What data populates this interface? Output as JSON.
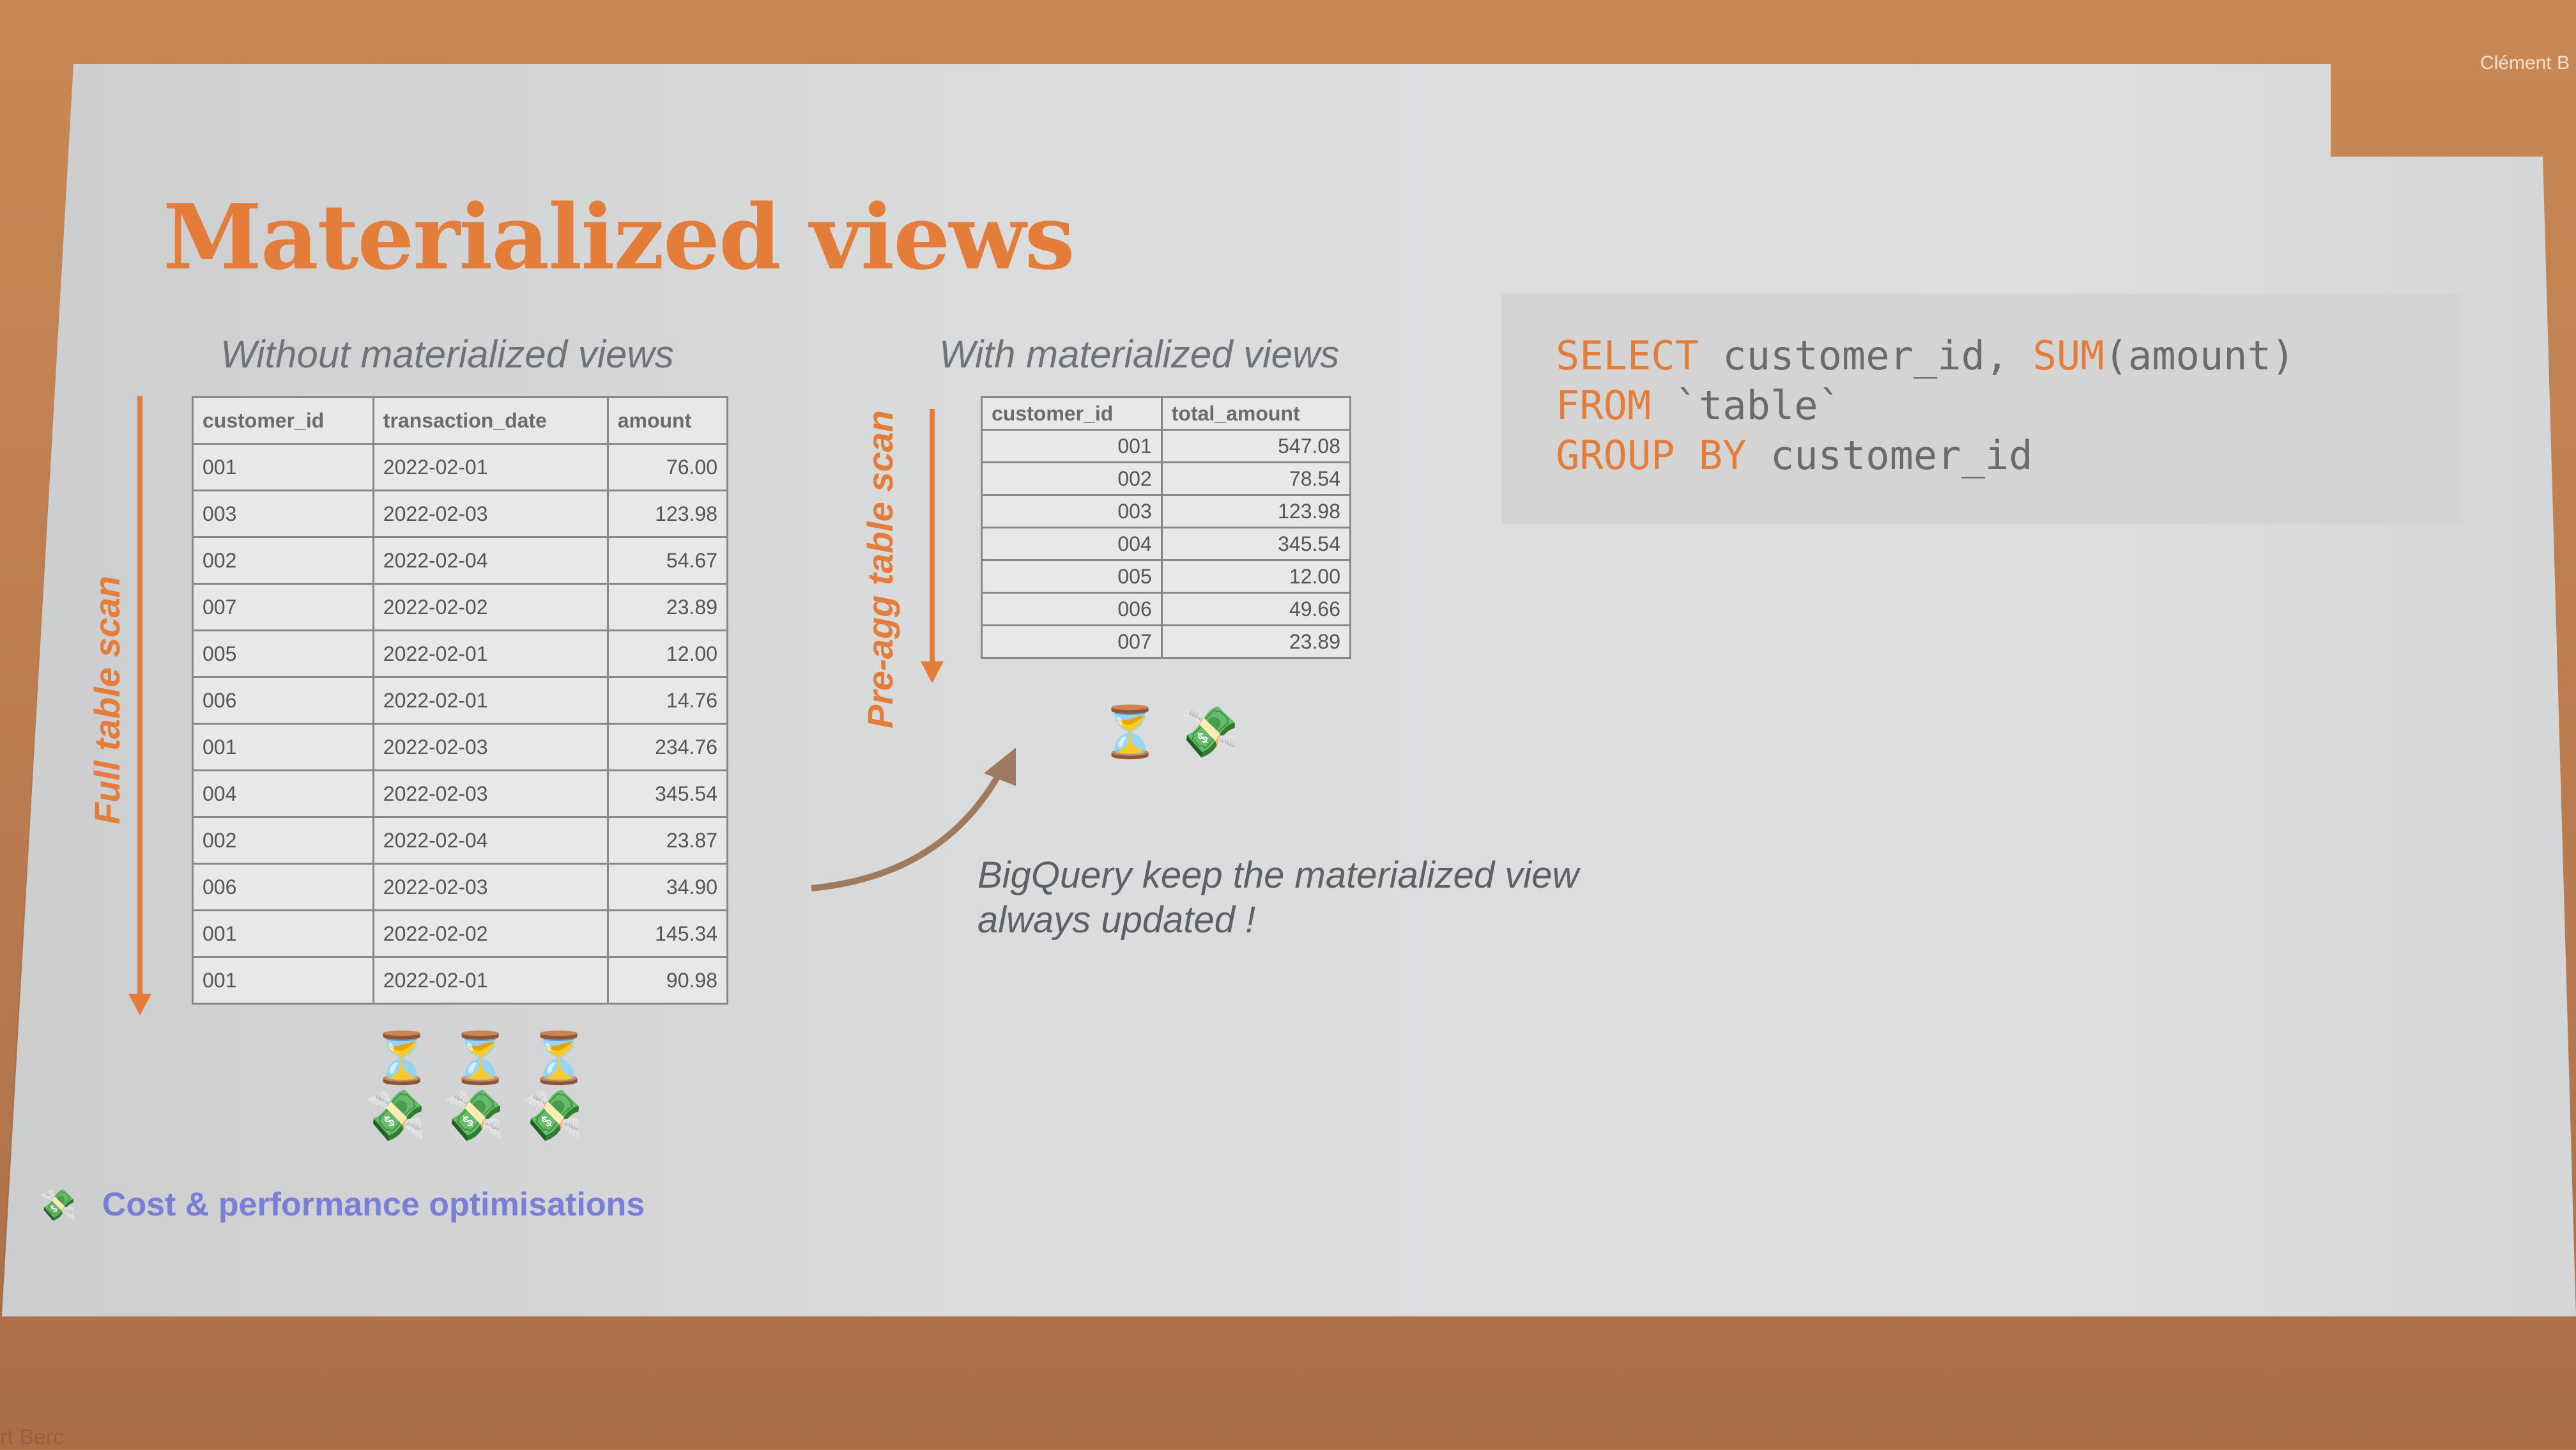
{
  "presenter": "Clément B",
  "bottom_text": "rt Berc",
  "slide": {
    "title": "Materialized views",
    "left_label": "Without materialized views",
    "right_label": "With materialized views",
    "full_scan_label": "Full table scan",
    "preagg_label": "Pre-agg table scan",
    "note": "BigQuery keep the materialized view always updated !",
    "footer": "Cost & performance optimisations"
  },
  "raw_table": {
    "headers": [
      "customer_id",
      "transaction_date",
      "amount"
    ],
    "rows": [
      [
        "001",
        "2022-02-01",
        "76.00"
      ],
      [
        "003",
        "2022-02-03",
        "123.98"
      ],
      [
        "002",
        "2022-02-04",
        "54.67"
      ],
      [
        "007",
        "2022-02-02",
        "23.89"
      ],
      [
        "005",
        "2022-02-01",
        "12.00"
      ],
      [
        "006",
        "2022-02-01",
        "14.76"
      ],
      [
        "001",
        "2022-02-03",
        "234.76"
      ],
      [
        "004",
        "2022-02-03",
        "345.54"
      ],
      [
        "002",
        "2022-02-04",
        "23.87"
      ],
      [
        "006",
        "2022-02-03",
        "34.90"
      ],
      [
        "001",
        "2022-02-02",
        "145.34"
      ],
      [
        "001",
        "2022-02-01",
        "90.98"
      ]
    ]
  },
  "agg_table": {
    "headers": [
      "customer_id",
      "total_amount"
    ],
    "rows": [
      [
        "001",
        "547.08"
      ],
      [
        "002",
        "78.54"
      ],
      [
        "003",
        "123.98"
      ],
      [
        "004",
        "345.54"
      ],
      [
        "005",
        "12.00"
      ],
      [
        "006",
        "49.66"
      ],
      [
        "007",
        "23.89"
      ]
    ]
  },
  "code": {
    "line1_kw1": "SELECT",
    "line1_rest": " customer_id, ",
    "line1_kw2": "SUM",
    "line1_end": "(amount)",
    "line2_kw": "FROM",
    "line2_rest": " `table`",
    "line3_kw": "GROUP BY",
    "line3_rest": " customer_id"
  },
  "icons": {
    "hourglass": "⏳",
    "money": "💸"
  },
  "colors": {
    "accent": "#e47c3a",
    "footer": "#7a7fd6"
  }
}
